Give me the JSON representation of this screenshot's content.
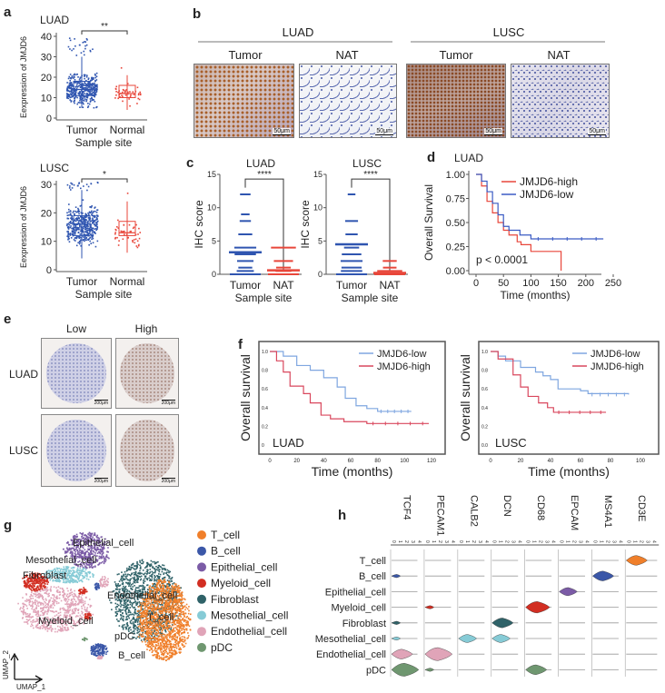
{
  "panels": {
    "a": "a",
    "b": "b",
    "c": "c",
    "d": "d",
    "e": "e",
    "f": "f",
    "g": "g",
    "h": "h"
  },
  "panel_b": {
    "groups": [
      "LUAD",
      "LUSC"
    ],
    "columns": [
      "Tumor",
      "NAT",
      "Tumor",
      "NAT"
    ],
    "scale_bar": "50μm"
  },
  "panel_e": {
    "columns": [
      "Low",
      "High"
    ],
    "rows": [
      "LUAD",
      "LUSC"
    ],
    "scale_bar": "200μm"
  },
  "colors": {
    "tumor": "#2f55b0",
    "normal": "#e8463a",
    "high": "#e8463a",
    "low": "#3a5bc4",
    "f_low": "#7fa6e0",
    "f_high": "#d9475d"
  },
  "chart_data": [
    {
      "id": "a-luad",
      "type": "box-scatter",
      "title": "LUAD",
      "xlabel": "Sample site",
      "ylabel": "Eexpression of JMJD6",
      "categories": [
        "Tumor",
        "Normal"
      ],
      "ylim": [
        0,
        40
      ],
      "yticks": [
        0,
        10,
        20,
        30,
        40
      ],
      "significance": "**",
      "series": [
        {
          "name": "Tumor",
          "median": 14,
          "q1": 11,
          "q3": 18,
          "min": 5,
          "max": 30,
          "outliers_max": 40
        },
        {
          "name": "Normal",
          "median": 12,
          "q1": 10,
          "q3": 16,
          "min": 4,
          "max": 21,
          "outliers_max": 30
        }
      ]
    },
    {
      "id": "a-lusc",
      "type": "box-scatter",
      "title": "LUSC",
      "xlabel": "Sample site",
      "ylabel": "Eexpression of JMJD6",
      "categories": [
        "Tumor",
        "Normal"
      ],
      "ylim": [
        0,
        30
      ],
      "yticks": [
        0,
        10,
        20,
        30
      ],
      "significance": "*",
      "series": [
        {
          "name": "Tumor",
          "median": 16,
          "q1": 12,
          "q3": 19,
          "min": 4,
          "max": 28,
          "outliers_max": 31
        },
        {
          "name": "Normal",
          "median": 13,
          "q1": 12,
          "q3": 17,
          "min": 6,
          "max": 24,
          "outliers_max": 31
        }
      ]
    },
    {
      "id": "c-luad",
      "type": "scatter",
      "title": "LUAD",
      "xlabel": "Sample site",
      "ylabel": "IHC score",
      "categories": [
        "Tumor",
        "NAT"
      ],
      "ylim": [
        0,
        15
      ],
      "yticks": [
        0,
        5,
        10,
        15
      ],
      "significance": "****",
      "series": [
        {
          "name": "Tumor",
          "values": [
            0,
            0.5,
            1,
            2,
            3,
            3.3,
            4,
            6,
            8,
            9,
            12
          ],
          "mean": 3.3
        },
        {
          "name": "NAT",
          "values": [
            0,
            0.5,
            1,
            2,
            4
          ],
          "mean": 0.6
        }
      ]
    },
    {
      "id": "c-lusc",
      "type": "scatter",
      "title": "LUSC",
      "xlabel": "Sample site",
      "ylabel": "IHC score",
      "categories": [
        "Tumor",
        "NAT"
      ],
      "ylim": [
        0,
        15
      ],
      "yticks": [
        0,
        5,
        10,
        15
      ],
      "significance": "****",
      "series": [
        {
          "name": "Tumor",
          "values": [
            0,
            0.5,
            1,
            2,
            3,
            4,
            4.5,
            6,
            8,
            12
          ],
          "mean": 4.5
        },
        {
          "name": "NAT",
          "values": [
            0,
            0.5,
            1,
            2
          ],
          "mean": 0.2
        }
      ]
    },
    {
      "id": "d",
      "type": "line",
      "title": "LUAD",
      "xlabel": "Time (months)",
      "ylabel": "Overall Survival",
      "xlim": [
        0,
        250
      ],
      "ylim": [
        0,
        1
      ],
      "xticks": [
        0,
        50,
        100,
        150,
        200,
        250
      ],
      "yticks": [
        "0.00",
        "0.25",
        "0.50",
        "0.75",
        "1.00"
      ],
      "annotation": "p < 0.0001",
      "legend": "top-right",
      "series": [
        {
          "name": "JMJD6-high",
          "color": "#e8463a",
          "points": [
            [
              0,
              1
            ],
            [
              10,
              0.88
            ],
            [
              20,
              0.72
            ],
            [
              30,
              0.6
            ],
            [
              40,
              0.5
            ],
            [
              50,
              0.42
            ],
            [
              60,
              0.37
            ],
            [
              75,
              0.3
            ],
            [
              82,
              0.27
            ],
            [
              100,
              0.2
            ],
            [
              155,
              0.2
            ],
            [
              155,
              0
            ]
          ]
        },
        {
          "name": "JMJD6-low",
          "color": "#3a5bc4",
          "points": [
            [
              0,
              1
            ],
            [
              10,
              0.93
            ],
            [
              20,
              0.82
            ],
            [
              30,
              0.7
            ],
            [
              40,
              0.58
            ],
            [
              50,
              0.46
            ],
            [
              60,
              0.42
            ],
            [
              80,
              0.37
            ],
            [
              100,
              0.33
            ],
            [
              232,
              0.33
            ]
          ]
        }
      ]
    },
    {
      "id": "f-luad",
      "type": "line",
      "annotation": "LUAD",
      "xlabel": "Time (months)",
      "ylabel": "Overall survival",
      "xlim": [
        0,
        120
      ],
      "ylim": [
        0,
        1
      ],
      "xticks": [
        0,
        20,
        40,
        60,
        80,
        100,
        120
      ],
      "yticks": [
        "0",
        "0.2",
        "0.4",
        "0.6",
        "0.8",
        "1.0"
      ],
      "legend": "top-right",
      "series": [
        {
          "name": "JMJD6-low",
          "color": "#7fa6e0",
          "points": [
            [
              0,
              1
            ],
            [
              10,
              0.95
            ],
            [
              20,
              0.85
            ],
            [
              30,
              0.8
            ],
            [
              40,
              0.72
            ],
            [
              50,
              0.62
            ],
            [
              56,
              0.5
            ],
            [
              64,
              0.42
            ],
            [
              72,
              0.39
            ],
            [
              80,
              0.36
            ],
            [
              105,
              0.36
            ]
          ]
        },
        {
          "name": "JMJD6-high",
          "color": "#d9475d",
          "points": [
            [
              0,
              1
            ],
            [
              5,
              0.9
            ],
            [
              10,
              0.78
            ],
            [
              15,
              0.63
            ],
            [
              25,
              0.55
            ],
            [
              30,
              0.45
            ],
            [
              38,
              0.32
            ],
            [
              45,
              0.28
            ],
            [
              55,
              0.25
            ],
            [
              72,
              0.23
            ],
            [
              118,
              0.23
            ]
          ]
        }
      ]
    },
    {
      "id": "f-lusc",
      "type": "line",
      "annotation": "LUSC",
      "xlabel": "Time (months)",
      "ylabel": "Overall survival",
      "xlim": [
        0,
        100
      ],
      "ylim": [
        0,
        1
      ],
      "xticks": [
        0,
        20,
        40,
        60,
        80,
        100
      ],
      "yticks": [
        "0.0",
        "0.2",
        "0.4",
        "0.6",
        "0.8",
        "1.0"
      ],
      "legend": "top-right",
      "series": [
        {
          "name": "JMJD6-low",
          "color": "#7fa6e0",
          "points": [
            [
              0,
              1
            ],
            [
              5,
              0.95
            ],
            [
              10,
              0.9
            ],
            [
              20,
              0.83
            ],
            [
              30,
              0.78
            ],
            [
              35,
              0.74
            ],
            [
              40,
              0.7
            ],
            [
              45,
              0.6
            ],
            [
              60,
              0.58
            ],
            [
              65,
              0.55
            ],
            [
              92,
              0.54
            ]
          ]
        },
        {
          "name": "JMJD6-high",
          "color": "#d9475d",
          "points": [
            [
              0,
              1
            ],
            [
              5,
              0.92
            ],
            [
              15,
              0.75
            ],
            [
              20,
              0.62
            ],
            [
              25,
              0.52
            ],
            [
              32,
              0.45
            ],
            [
              38,
              0.4
            ],
            [
              42,
              0.35
            ],
            [
              77,
              0.35
            ]
          ]
        }
      ]
    },
    {
      "id": "g",
      "type": "scatter",
      "xlabel": "UMAP_1",
      "ylabel": "UMAP_2",
      "legend": "right",
      "clusters": [
        {
          "name": "T_cell",
          "color": "#f07f2a"
        },
        {
          "name": "B_cell",
          "color": "#3b57a8"
        },
        {
          "name": "Epithelial_cell",
          "color": "#7b5ba6"
        },
        {
          "name": "Myeloid_cell",
          "color": "#d22e22"
        },
        {
          "name": "Fibroblast",
          "color": "#2f6268"
        },
        {
          "name": "Mesothelial_cell",
          "color": "#86cbd6"
        },
        {
          "name": "Endothelial_cell",
          "color": "#e0a4b8"
        },
        {
          "name": "pDC",
          "color": "#6f9770"
        }
      ]
    },
    {
      "id": "h",
      "type": "violin",
      "genes": [
        "TCF4",
        "PECAM1",
        "CALB2",
        "DCN",
        "CD68",
        "EPCAM",
        "MS4A1",
        "CD3E"
      ],
      "gene_ticks": [
        "0",
        "1",
        "2",
        "3",
        "4"
      ],
      "rows": [
        "T_cell",
        "B_cell",
        "Epithelial_cell",
        "Myeloid_cell",
        "Fibroblast",
        "Mesothelial_cell",
        "Endothelial_cell",
        "pDC"
      ],
      "expression": [
        [
          0,
          0,
          0,
          0,
          0,
          0,
          0,
          0.6
        ],
        [
          0.2,
          0,
          0,
          0,
          0,
          0,
          0.6,
          0
        ],
        [
          0,
          0,
          0,
          0,
          0,
          0.5,
          0,
          0
        ],
        [
          0,
          0.2,
          0,
          0,
          0.7,
          0,
          0,
          0
        ],
        [
          0.2,
          0,
          0,
          0.6,
          0,
          0,
          0,
          0
        ],
        [
          0.2,
          0,
          0.5,
          0.5,
          0,
          0,
          0,
          0
        ],
        [
          0.6,
          0.8,
          0,
          0,
          0,
          0,
          0,
          0
        ],
        [
          0.8,
          0.2,
          0,
          0,
          0.6,
          0,
          0,
          0
        ]
      ]
    }
  ]
}
